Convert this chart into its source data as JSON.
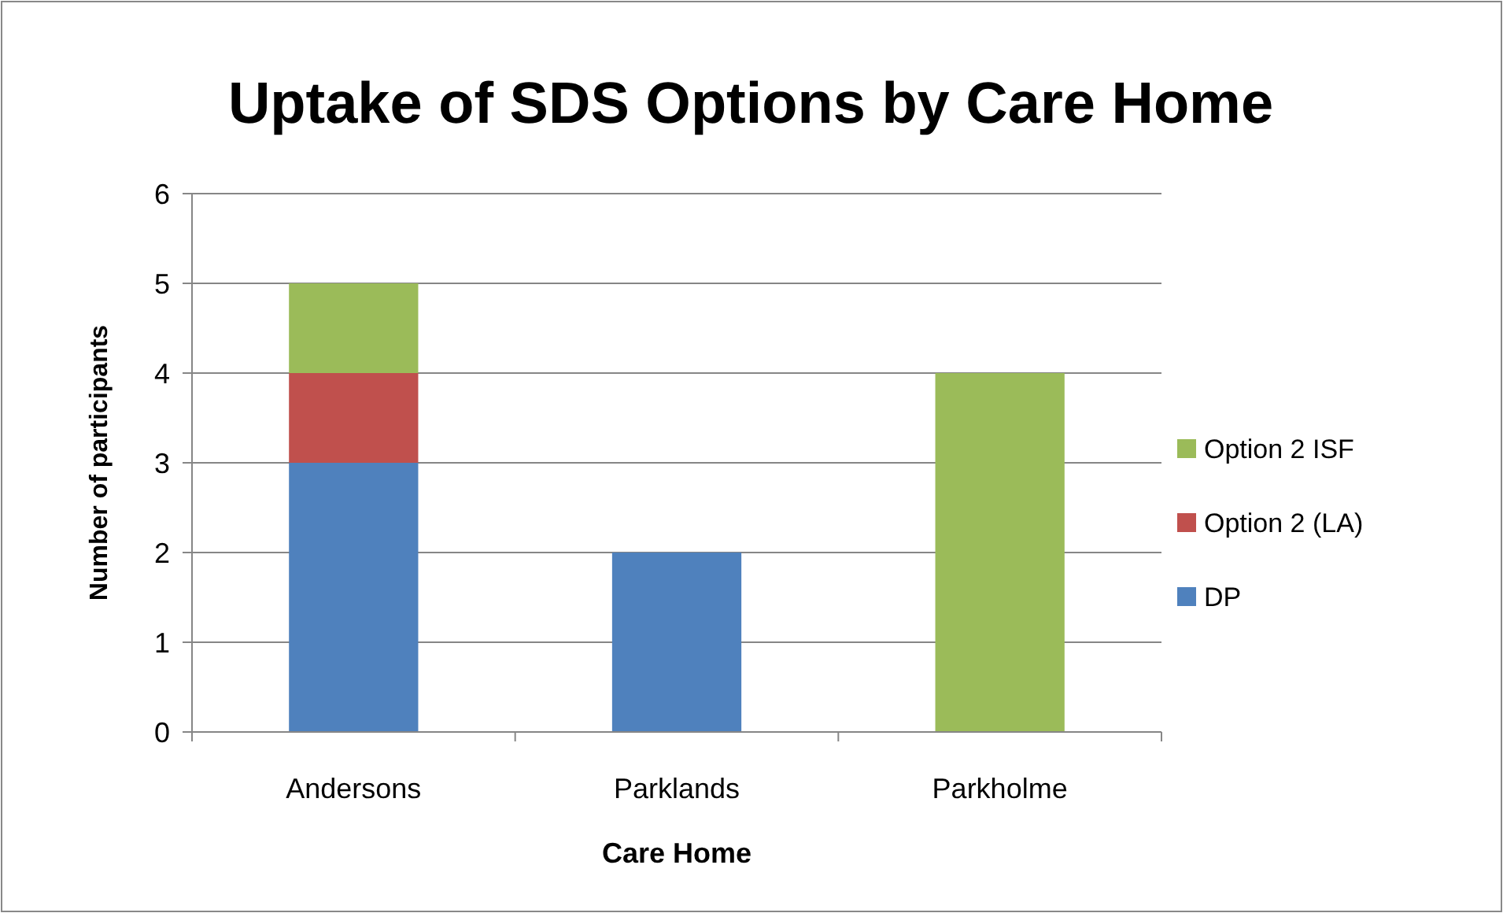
{
  "chart_data": {
    "type": "bar",
    "title": "Uptake of SDS Options by Care Home",
    "xlabel": "Care Home",
    "ylabel": "Number of participants",
    "categories": [
      "Andersons",
      "Parklands",
      "Parkholme"
    ],
    "series": [
      {
        "name": "DP",
        "color": "#4f81bd",
        "values": [
          3,
          2,
          0
        ]
      },
      {
        "name": "Option 2 (LA)",
        "color": "#c0504d",
        "values": [
          1,
          0,
          0
        ]
      },
      {
        "name": "Option 2 ISF",
        "color": "#9bbb59",
        "values": [
          1,
          0,
          4
        ]
      }
    ],
    "stacked": true,
    "ylim": [
      0,
      6
    ],
    "yticks": [
      0,
      1,
      2,
      3,
      4,
      5,
      6
    ],
    "grid": "y",
    "legend": "right"
  }
}
